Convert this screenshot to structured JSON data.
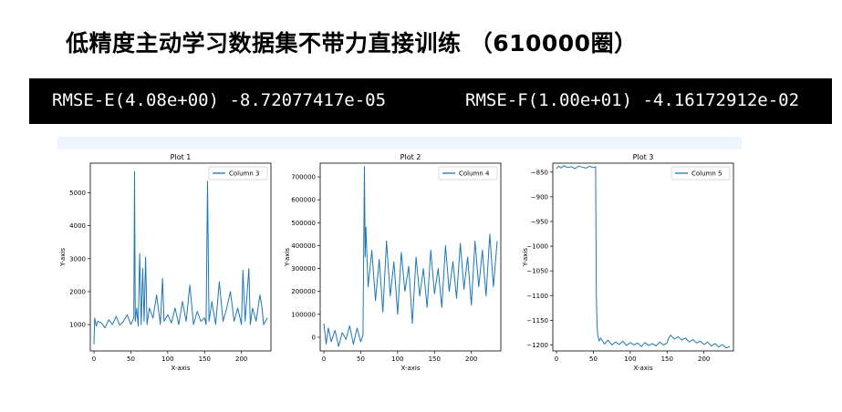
{
  "title": "低精度主动学习数据集不带力直接训练 （610000圈）",
  "metrics": {
    "rmse_e": "RMSE-E(4.08e+00) -8.72077417e-05",
    "rmse_f": "RMSE-F(1.00e+01) -4.16172912e-02"
  },
  "colors": {
    "line": "#1f77b4",
    "bar_bg": "#000000",
    "bar_text": "#ffffff"
  },
  "chart_data": [
    {
      "type": "line",
      "title": "Plot 1",
      "xlabel": "X-axis",
      "ylabel": "Y-axis",
      "legend": "Column 3",
      "legend_position": "top-right",
      "xlim": [
        -5,
        240
      ],
      "ylim": [
        200,
        5900
      ],
      "xticks": [
        0,
        50,
        100,
        150,
        200
      ],
      "yticks": [
        1000,
        2000,
        3000,
        4000,
        5000
      ],
      "ytick_labels": [
        "1000",
        "2000",
        "3000",
        "4000",
        "5000"
      ],
      "x": [
        0,
        1,
        3,
        5,
        10,
        15,
        20,
        25,
        30,
        35,
        40,
        45,
        50,
        54,
        55,
        56,
        58,
        60,
        62,
        64,
        66,
        68,
        70,
        72,
        75,
        80,
        85,
        90,
        93,
        95,
        100,
        105,
        110,
        115,
        120,
        125,
        130,
        135,
        140,
        145,
        150,
        152,
        154,
        156,
        160,
        165,
        170,
        175,
        180,
        185,
        190,
        195,
        200,
        202,
        205,
        210,
        212,
        215,
        220,
        225,
        228,
        230,
        235
      ],
      "values": [
        400,
        1200,
        950,
        1100,
        1050,
        900,
        1150,
        1000,
        1250,
        980,
        1100,
        1300,
        1000,
        1200,
        5650,
        1100,
        1500,
        950,
        3150,
        1000,
        2700,
        1100,
        3050,
        1000,
        1500,
        1200,
        1900,
        1000,
        2400,
        1100,
        1300,
        1050,
        1500,
        1000,
        1700,
        1100,
        2200,
        1000,
        1400,
        1100,
        1200,
        1000,
        5350,
        1100,
        1700,
        1000,
        2300,
        1100,
        1500,
        2000,
        1100,
        1500,
        1000,
        2650,
        1100,
        2700,
        1000,
        1500,
        1100,
        1900,
        1500,
        1000,
        1200
      ]
    },
    {
      "type": "line",
      "title": "Plot 2",
      "xlabel": "X-axis",
      "ylabel": "Y-axis",
      "legend": "Column 4",
      "legend_position": "top-right",
      "xlim": [
        -5,
        240
      ],
      "ylim": [
        -60000,
        760000
      ],
      "xticks": [
        0,
        50,
        100,
        150,
        200
      ],
      "yticks": [
        0,
        100000,
        200000,
        300000,
        400000,
        500000,
        600000,
        700000
      ],
      "ytick_labels": [
        "0",
        "100000",
        "200000",
        "300000",
        "400000",
        "500000",
        "600000",
        "700000"
      ],
      "x": [
        0,
        3,
        6,
        10,
        15,
        20,
        25,
        30,
        35,
        40,
        45,
        50,
        53,
        55,
        56,
        57,
        60,
        65,
        70,
        75,
        80,
        85,
        90,
        95,
        100,
        105,
        110,
        115,
        120,
        125,
        130,
        135,
        140,
        145,
        150,
        155,
        160,
        165,
        170,
        175,
        180,
        185,
        190,
        195,
        200,
        205,
        210,
        215,
        220,
        225,
        230,
        235
      ],
      "values": [
        60000,
        -30000,
        40000,
        -20000,
        30000,
        -40000,
        20000,
        -10000,
        50000,
        -30000,
        40000,
        -20000,
        10000,
        745000,
        350000,
        480000,
        220000,
        380000,
        160000,
        340000,
        110000,
        420000,
        180000,
        330000,
        100000,
        370000,
        200000,
        310000,
        60000,
        350000,
        180000,
        300000,
        130000,
        380000,
        190000,
        300000,
        130000,
        400000,
        200000,
        330000,
        170000,
        410000,
        210000,
        350000,
        140000,
        420000,
        220000,
        380000,
        180000,
        450000,
        220000,
        420000
      ]
    },
    {
      "type": "line",
      "title": "Plot 3",
      "xlabel": "X-axis",
      "ylabel": "Y-axis",
      "legend": "Column 5",
      "legend_position": "top-right",
      "xlim": [
        -5,
        240
      ],
      "ylim": [
        -1212,
        -832
      ],
      "xticks": [
        0,
        50,
        100,
        150,
        200
      ],
      "yticks": [
        -850,
        -900,
        -950,
        -1000,
        -1050,
        -1100,
        -1150,
        -1200
      ],
      "ytick_labels": [
        "−850",
        "−900",
        "−950",
        "−1000",
        "−1050",
        "−1100",
        "−1150",
        "−1200"
      ],
      "x": [
        0,
        3,
        6,
        10,
        15,
        20,
        25,
        30,
        35,
        40,
        45,
        50,
        53,
        54,
        55,
        56,
        58,
        60,
        65,
        70,
        75,
        80,
        85,
        90,
        95,
        100,
        105,
        110,
        115,
        120,
        125,
        130,
        135,
        140,
        145,
        150,
        152,
        155,
        160,
        165,
        170,
        175,
        180,
        185,
        190,
        195,
        200,
        205,
        210,
        215,
        220,
        225,
        230,
        235
      ],
      "values": [
        -843,
        -838,
        -842,
        -837,
        -841,
        -839,
        -843,
        -838,
        -840,
        -842,
        -838,
        -841,
        -839,
        -1100,
        -1160,
        -1180,
        -1192,
        -1186,
        -1198,
        -1190,
        -1200,
        -1194,
        -1199,
        -1192,
        -1201,
        -1195,
        -1200,
        -1196,
        -1203,
        -1195,
        -1201,
        -1197,
        -1202,
        -1194,
        -1200,
        -1196,
        -1186,
        -1180,
        -1188,
        -1183,
        -1190,
        -1186,
        -1194,
        -1189,
        -1196,
        -1192,
        -1199,
        -1194,
        -1202,
        -1197,
        -1204,
        -1199,
        -1206,
        -1203
      ]
    }
  ]
}
